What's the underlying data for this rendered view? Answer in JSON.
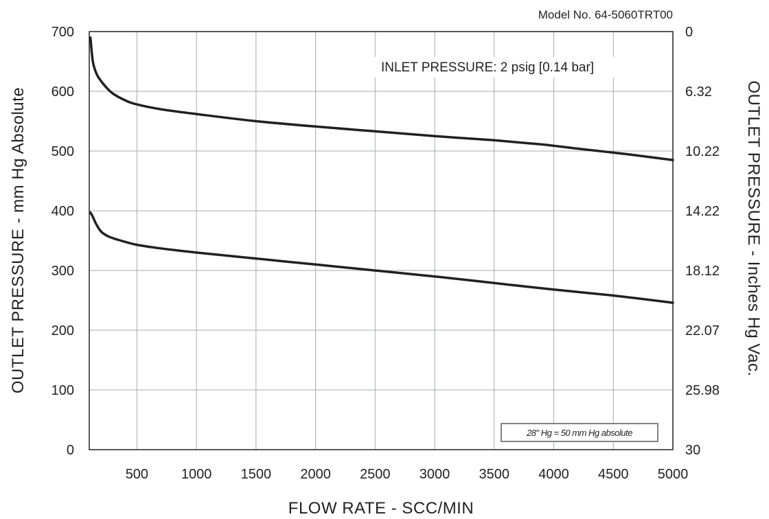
{
  "chart_data": {
    "type": "line",
    "model_label": "Model No. 64-5060TRT00",
    "annotation": "INLET PRESSURE: 2 psig [0.14 bar]",
    "note": "28\" Hg = 50 mm Hg absolute",
    "xlabel": "FLOW RATE - SCC/MIN",
    "ylabel": "OUTLET PRESSURE - mm Hg Absolute",
    "ylabel_right": "OUTLET PRESSURE - Inches Hg Vac.",
    "xlim": [
      100,
      5000
    ],
    "ylim": [
      0,
      700
    ],
    "x_ticks": [
      500,
      1000,
      1500,
      2000,
      2500,
      3000,
      3500,
      4000,
      4500,
      5000
    ],
    "y_ticks": [
      0,
      100,
      200,
      300,
      400,
      500,
      600,
      700
    ],
    "y_ticks_right": [
      "30",
      "25.98",
      "22.07",
      "18.12",
      "14.22",
      "10.22",
      "6.32",
      "0"
    ],
    "grid": true,
    "series": [
      {
        "x": [
          110,
          130,
          160,
          200,
          250,
          300,
          400,
          500,
          700,
          1000,
          1500,
          2000,
          2500,
          3000,
          3500,
          3900,
          4200,
          4600,
          5000
        ],
        "y": [
          690,
          650,
          630,
          617,
          605,
          596,
          585,
          578,
          570,
          562,
          550,
          541,
          533,
          525,
          518,
          511,
          504,
          495,
          485
        ]
      },
      {
        "x": [
          110,
          130,
          160,
          200,
          250,
          300,
          400,
          500,
          700,
          1000,
          1500,
          2000,
          2500,
          3000,
          3500,
          4000,
          4500,
          5000
        ],
        "y": [
          397,
          390,
          377,
          365,
          358,
          354,
          348,
          343,
          337,
          330,
          320,
          310,
          300,
          290,
          279,
          268,
          258,
          246
        ]
      }
    ]
  }
}
